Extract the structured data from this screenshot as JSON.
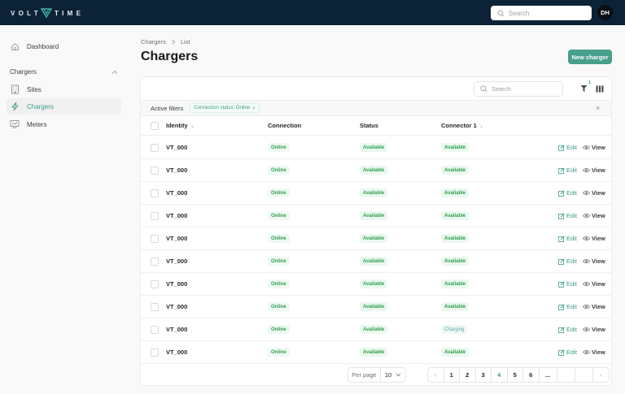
{
  "topbar": {
    "logo_left": "VOLT",
    "logo_right": "TIME",
    "search_placeholder": "Search",
    "avatar_initials": "DH",
    "bg_color": "#0c2236"
  },
  "sidebar": {
    "dashboard_label": "Dashboard",
    "section_label": "Chargers",
    "items": [
      {
        "label": "Sites",
        "icon": "building-icon"
      },
      {
        "label": "Chargers",
        "icon": "lightning-icon",
        "active": true
      },
      {
        "label": "Meters",
        "icon": "meter-icon"
      }
    ]
  },
  "breadcrumb": [
    "Chargers",
    "List"
  ],
  "page_title": "Chargers",
  "new_button_label": "New charger",
  "accent_color": "#48a08a",
  "table": {
    "search_placeholder": "Search",
    "filter_count": "1",
    "active_filters_label": "Active filters",
    "active_filter_chip": "Connection status: Online",
    "columns": [
      "Identity",
      "Connection",
      "Status",
      "Connector 1"
    ],
    "rows": [
      {
        "identity": "VT_000",
        "connection": "Online",
        "status": "Available",
        "connector1": "Available"
      },
      {
        "identity": "VT_000",
        "connection": "Online",
        "status": "Available",
        "connector1": "Available"
      },
      {
        "identity": "VT_000",
        "connection": "Online",
        "status": "Available",
        "connector1": "Available"
      },
      {
        "identity": "VT_000",
        "connection": "Online",
        "status": "Available",
        "connector1": "Available"
      },
      {
        "identity": "VT_000",
        "connection": "Online",
        "status": "Available",
        "connector1": "Available"
      },
      {
        "identity": "VT_000",
        "connection": "Online",
        "status": "Available",
        "connector1": "Available"
      },
      {
        "identity": "VT_000",
        "connection": "Online",
        "status": "Available",
        "connector1": "Available"
      },
      {
        "identity": "VT_000",
        "connection": "Online",
        "status": "Available",
        "connector1": "Available"
      },
      {
        "identity": "VT_000",
        "connection": "Online",
        "status": "Available",
        "connector1": "Charging"
      },
      {
        "identity": "VT_000",
        "connection": "Online",
        "status": "Available",
        "connector1": "Available"
      }
    ],
    "edit_label": "Edit",
    "view_label": "View"
  },
  "pagination": {
    "per_page_label": "Per page",
    "per_page_value": "10",
    "pages": [
      "1",
      "2",
      "3",
      "4",
      "5",
      "6",
      "..."
    ],
    "current_page": "4"
  }
}
